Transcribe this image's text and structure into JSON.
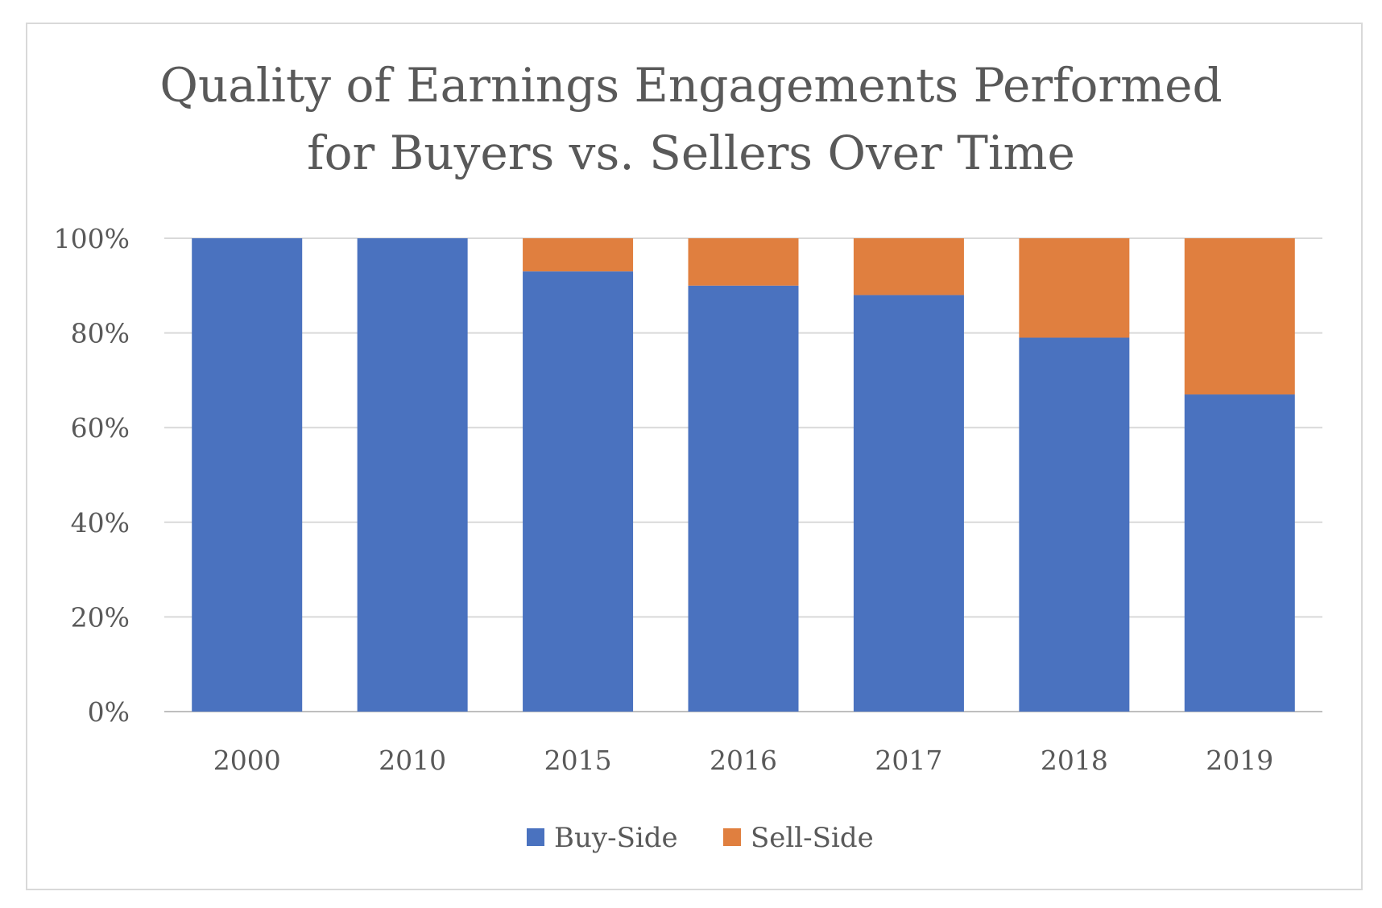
{
  "chart_data": {
    "type": "bar",
    "stacked": true,
    "percent_stacked": true,
    "title_lines": [
      "Quality of Earnings Engagements Performed",
      "for Buyers vs. Sellers Over Time"
    ],
    "categories": [
      "2000",
      "2010",
      "2015",
      "2016",
      "2017",
      "2018",
      "2019"
    ],
    "series": [
      {
        "name": "Buy-Side",
        "color": "#4a72bf",
        "values": [
          100,
          100,
          93,
          90,
          88,
          79,
          67
        ]
      },
      {
        "name": "Sell-Side",
        "color": "#e07f3f",
        "values": [
          0,
          0,
          7,
          10,
          12,
          21,
          33
        ]
      }
    ],
    "y_ticks": [
      "0%",
      "20%",
      "40%",
      "60%",
      "80%",
      "100%"
    ],
    "ylim": [
      0,
      100
    ],
    "grid": true,
    "legend_position": "bottom"
  }
}
